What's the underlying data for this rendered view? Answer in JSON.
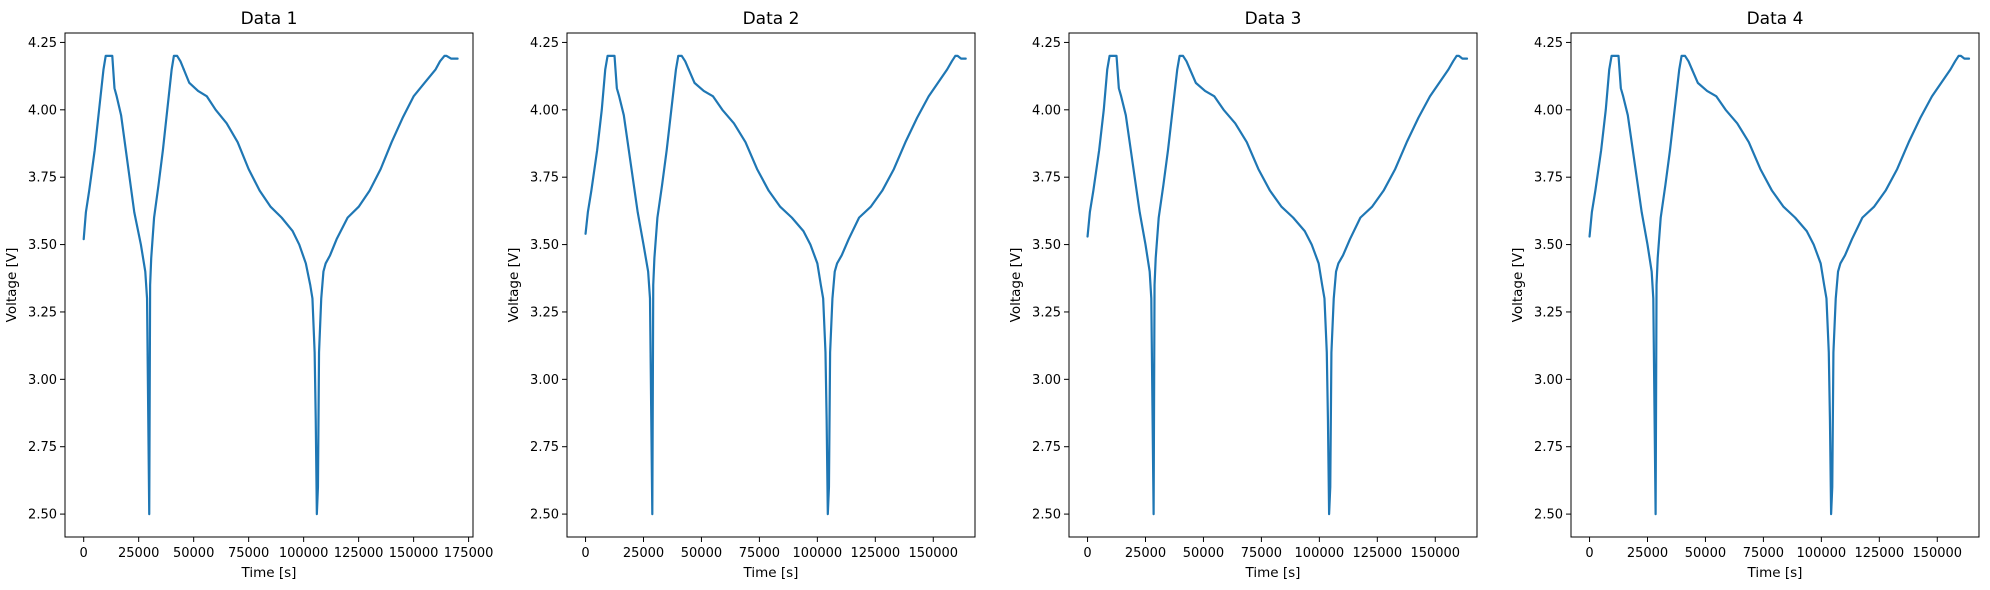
{
  "chart_data": [
    {
      "type": "line",
      "title": "Data 1",
      "xlabel": "Time [s]",
      "ylabel": "Voltage [V]",
      "xlim": [
        -8500,
        177000
      ],
      "ylim": [
        2.415,
        4.285
      ],
      "xticks": [
        0,
        25000,
        50000,
        75000,
        100000,
        125000,
        150000,
        175000
      ],
      "yticks": [
        2.5,
        2.75,
        3.0,
        3.25,
        3.5,
        3.75,
        4.0,
        4.25
      ],
      "grid": false,
      "color": "#1f77b4",
      "series": [
        {
          "x": [
            0,
            1000,
            2500,
            5000,
            7000,
            9000,
            10000,
            11500,
            13000,
            14000,
            15000,
            17000,
            20000,
            23000,
            26000,
            28000,
            28800,
            29300,
            29800,
            30200,
            30700,
            32000,
            34000,
            36000,
            38000,
            40000,
            41000,
            42500,
            44000,
            45500
          ],
          "y": [
            3.52,
            3.62,
            3.7,
            3.85,
            4.0,
            4.15,
            4.2,
            4.2,
            4.2,
            4.08,
            4.05,
            3.98,
            3.8,
            3.62,
            3.5,
            3.4,
            3.3,
            2.9,
            2.5,
            3.35,
            3.45,
            3.6,
            3.72,
            3.85,
            4.0,
            4.15,
            4.2,
            4.2,
            4.18,
            4.15
          ]
        },
        {
          "x": [
            45500,
            48000,
            52000,
            56000,
            60000,
            65000,
            70000,
            75000,
            80000,
            85000,
            90000,
            95000,
            98000,
            101000,
            103000,
            104000,
            105000,
            105500,
            106000,
            106500,
            107000,
            108000,
            109000,
            110000,
            112000,
            115000,
            120000,
            125000,
            130000,
            135000,
            140000,
            145000,
            150000,
            155000,
            160000,
            162000,
            164000,
            165000,
            167000,
            170000
          ],
          "y": [
            4.15,
            4.1,
            4.07,
            4.05,
            4.0,
            3.95,
            3.88,
            3.78,
            3.7,
            3.64,
            3.6,
            3.55,
            3.5,
            3.43,
            3.35,
            3.3,
            3.1,
            2.85,
            2.5,
            2.6,
            3.1,
            3.3,
            3.4,
            3.43,
            3.46,
            3.52,
            3.6,
            3.64,
            3.7,
            3.78,
            3.88,
            3.97,
            4.05,
            4.1,
            4.15,
            4.18,
            4.2,
            4.2,
            4.19,
            4.19
          ]
        }
      ]
    },
    {
      "type": "line",
      "title": "Data 2",
      "xlabel": "Time [s]",
      "ylabel": "Voltage [V]",
      "xlim": [
        -8000,
        168000
      ],
      "ylim": [
        2.415,
        4.285
      ],
      "xticks": [
        0,
        25000,
        50000,
        75000,
        100000,
        125000,
        150000
      ],
      "yticks": [
        2.5,
        2.75,
        3.0,
        3.25,
        3.5,
        3.75,
        4.0,
        4.25
      ],
      "grid": false,
      "color": "#1f77b4",
      "series": [
        {
          "x": [
            0,
            1000,
            2500,
            5000,
            7000,
            8500,
            9500,
            11000,
            12500,
            13500,
            14500,
            16500,
            19500,
            22500,
            25000,
            27000,
            27800,
            28300,
            28800,
            29200,
            29700,
            31000,
            33000,
            35000,
            37000,
            39000,
            40000,
            41500,
            43000,
            44500
          ],
          "y": [
            3.54,
            3.62,
            3.7,
            3.85,
            4.0,
            4.15,
            4.2,
            4.2,
            4.2,
            4.08,
            4.05,
            3.98,
            3.8,
            3.62,
            3.5,
            3.4,
            3.3,
            2.9,
            2.5,
            3.35,
            3.45,
            3.6,
            3.72,
            3.85,
            4.0,
            4.15,
            4.2,
            4.2,
            4.18,
            4.15
          ]
        },
        {
          "x": [
            44500,
            47000,
            51000,
            55000,
            59000,
            64000,
            69000,
            74000,
            79000,
            84000,
            89000,
            94000,
            97000,
            100000,
            101500,
            102500,
            103500,
            104000,
            104500,
            105000,
            105500,
            106500,
            107500,
            108500,
            110500,
            113500,
            118000,
            123000,
            128000,
            133000,
            138000,
            143000,
            148000,
            152000,
            156000,
            158000,
            159500,
            160500,
            162000,
            164000
          ],
          "y": [
            4.15,
            4.1,
            4.07,
            4.05,
            4.0,
            3.95,
            3.88,
            3.78,
            3.7,
            3.64,
            3.6,
            3.55,
            3.5,
            3.43,
            3.35,
            3.3,
            3.1,
            2.85,
            2.5,
            2.6,
            3.1,
            3.3,
            3.4,
            3.43,
            3.46,
            3.52,
            3.6,
            3.64,
            3.7,
            3.78,
            3.88,
            3.97,
            4.05,
            4.1,
            4.15,
            4.18,
            4.2,
            4.2,
            4.19,
            4.19
          ]
        }
      ]
    },
    {
      "type": "line",
      "title": "Data 3",
      "xlabel": "Time [s]",
      "ylabel": "Voltage [V]",
      "xlim": [
        -8000,
        168000
      ],
      "ylim": [
        2.415,
        4.285
      ],
      "xticks": [
        0,
        25000,
        50000,
        75000,
        100000,
        125000,
        150000
      ],
      "yticks": [
        2.5,
        2.75,
        3.0,
        3.25,
        3.5,
        3.75,
        4.0,
        4.25
      ],
      "grid": false,
      "color": "#1f77b4",
      "series": [
        {
          "x": [
            0,
            1000,
            2500,
            5000,
            7000,
            8500,
            9500,
            11000,
            12500,
            13500,
            14500,
            16500,
            19500,
            22500,
            25000,
            26800,
            27500,
            28000,
            28500,
            28900,
            29400,
            30700,
            32700,
            34700,
            36700,
            38700,
            39700,
            41200,
            42700,
            44200
          ],
          "y": [
            3.53,
            3.62,
            3.7,
            3.85,
            4.0,
            4.15,
            4.2,
            4.2,
            4.2,
            4.08,
            4.05,
            3.98,
            3.8,
            3.62,
            3.5,
            3.4,
            3.3,
            2.9,
            2.5,
            3.35,
            3.45,
            3.6,
            3.72,
            3.85,
            4.0,
            4.15,
            4.2,
            4.2,
            4.18,
            4.15
          ]
        },
        {
          "x": [
            44200,
            46700,
            50700,
            54700,
            58700,
            63700,
            68700,
            73700,
            78700,
            83700,
            88700,
            93700,
            96700,
            99700,
            101200,
            102200,
            103200,
            103700,
            104200,
            104700,
            105200,
            106200,
            107200,
            108200,
            110200,
            113200,
            117700,
            122700,
            127700,
            132700,
            137700,
            142700,
            147700,
            151700,
            155700,
            157700,
            159200,
            160200,
            161700,
            163700
          ],
          "y": [
            4.15,
            4.1,
            4.07,
            4.05,
            4.0,
            3.95,
            3.88,
            3.78,
            3.7,
            3.64,
            3.6,
            3.55,
            3.5,
            3.43,
            3.35,
            3.3,
            3.1,
            2.85,
            2.5,
            2.6,
            3.1,
            3.3,
            3.4,
            3.43,
            3.46,
            3.52,
            3.6,
            3.64,
            3.7,
            3.78,
            3.88,
            3.97,
            4.05,
            4.1,
            4.15,
            4.18,
            4.2,
            4.2,
            4.19,
            4.19
          ]
        }
      ]
    },
    {
      "type": "line",
      "title": "Data 4",
      "xlabel": "Time [s]",
      "ylabel": "Voltage [V]",
      "xlim": [
        -8000,
        168000
      ],
      "ylim": [
        2.415,
        4.285
      ],
      "xticks": [
        0,
        25000,
        50000,
        75000,
        100000,
        125000,
        150000
      ],
      "yticks": [
        2.5,
        2.75,
        3.0,
        3.25,
        3.5,
        3.75,
        4.0,
        4.25
      ],
      "grid": false,
      "color": "#1f77b4",
      "series": [
        {
          "x": [
            0,
            1000,
            2500,
            5000,
            7000,
            8500,
            9500,
            11000,
            12500,
            13500,
            14500,
            16500,
            19500,
            22500,
            25000,
            26800,
            27500,
            28000,
            28500,
            28900,
            29400,
            30700,
            32700,
            34700,
            36700,
            38700,
            39700,
            41200,
            42700,
            44200
          ],
          "y": [
            3.53,
            3.62,
            3.7,
            3.85,
            4.0,
            4.15,
            4.2,
            4.2,
            4.2,
            4.08,
            4.05,
            3.98,
            3.8,
            3.62,
            3.5,
            3.4,
            3.3,
            2.9,
            2.5,
            3.35,
            3.45,
            3.6,
            3.72,
            3.85,
            4.0,
            4.15,
            4.2,
            4.2,
            4.18,
            4.15
          ]
        },
        {
          "x": [
            44200,
            46700,
            50700,
            54700,
            58700,
            63700,
            68700,
            73700,
            78700,
            83700,
            88700,
            93700,
            96700,
            99700,
            101200,
            102200,
            103200,
            103700,
            104200,
            104700,
            105200,
            106200,
            107200,
            108200,
            110200,
            113200,
            117700,
            122700,
            127700,
            132700,
            137700,
            142700,
            147700,
            151700,
            155700,
            157700,
            159200,
            160200,
            161700,
            163700
          ],
          "y": [
            4.15,
            4.1,
            4.07,
            4.05,
            4.0,
            3.95,
            3.88,
            3.78,
            3.7,
            3.64,
            3.6,
            3.55,
            3.5,
            3.43,
            3.35,
            3.3,
            3.1,
            2.85,
            2.5,
            2.6,
            3.1,
            3.3,
            3.4,
            3.43,
            3.46,
            3.52,
            3.6,
            3.64,
            3.7,
            3.78,
            3.88,
            3.97,
            4.05,
            4.1,
            4.15,
            4.18,
            4.2,
            4.2,
            4.19,
            4.19
          ]
        }
      ]
    }
  ]
}
